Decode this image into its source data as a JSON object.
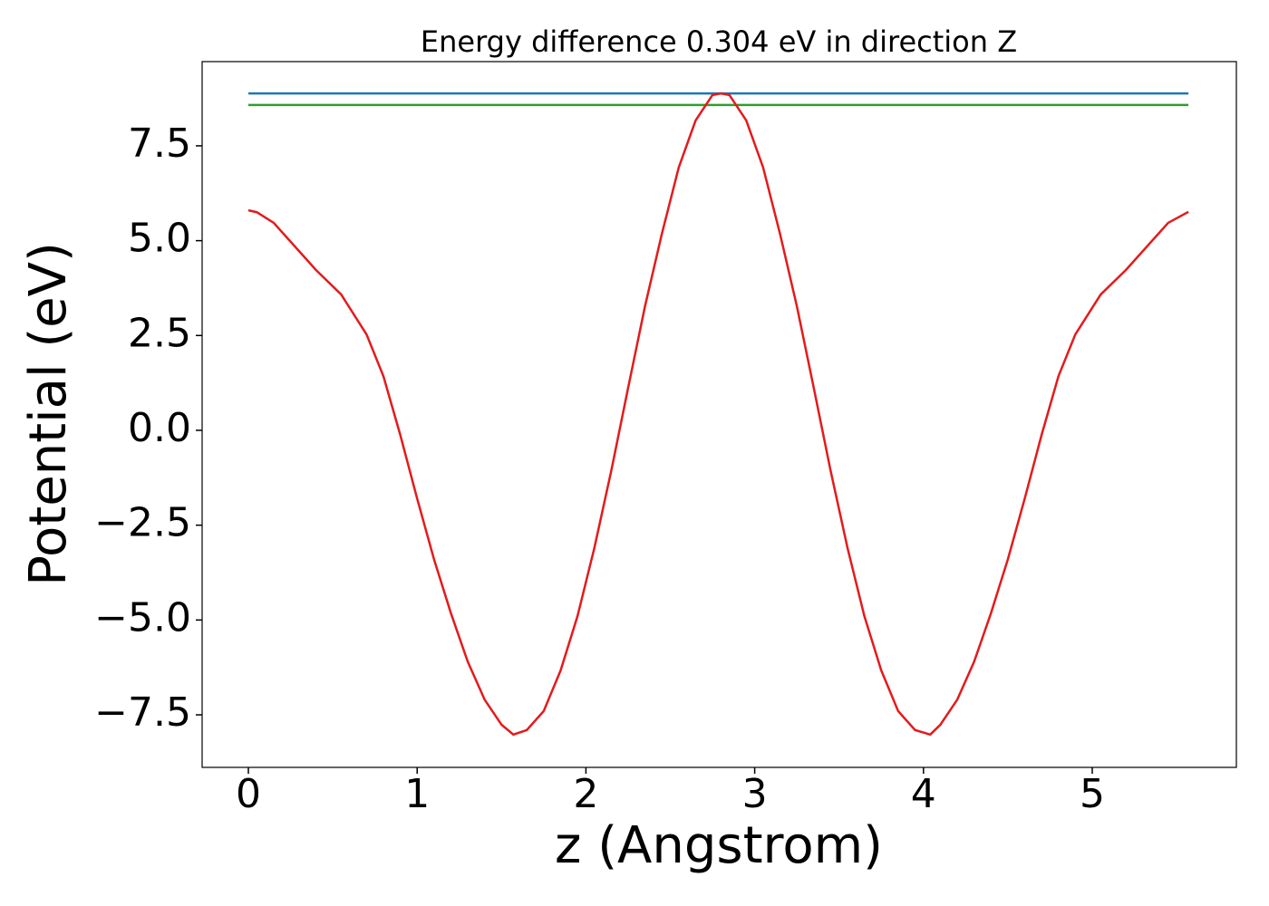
{
  "chart_data": {
    "type": "line",
    "title": "Energy difference 0.304 eV in direction Z",
    "xlabel": "z (Angstrom)",
    "ylabel": "Potential (eV)",
    "xlim": [
      -0.274,
      5.854
    ],
    "ylim": [
      -8.885,
      9.72
    ],
    "xticks": [
      0,
      1,
      2,
      3,
      4,
      5
    ],
    "yticks": [
      {
        "value": -7.5,
        "label": "−7.5"
      },
      {
        "value": -5,
        "label": "−5.0"
      },
      {
        "value": -2.5,
        "label": "−2.5"
      },
      {
        "value": 0,
        "label": "0.0"
      },
      2.5,
      {
        "value": 5,
        "label": "5.0"
      },
      7.5
    ],
    "series": [
      {
        "color": "#1f77b4",
        "x": [
          0,
          5.57
        ],
        "values": [
          8.88,
          8.88
        ]
      },
      {
        "color": "#2ca02c",
        "x": [
          0,
          5.57
        ],
        "values": [
          8.576,
          8.576
        ]
      },
      {
        "color": "#e41a1c",
        "x": [
          0,
          0.05,
          0.15,
          0.4,
          0.55,
          0.7,
          0.8,
          0.9,
          1.0,
          1.1,
          1.2,
          1.3,
          1.4,
          1.5,
          1.57,
          1.65,
          1.75,
          1.85,
          1.95,
          2.05,
          2.15,
          2.25,
          2.35,
          2.45,
          2.55,
          2.65,
          2.75,
          2.8,
          2.85,
          2.95,
          3.05,
          3.15,
          3.25,
          3.35,
          3.45,
          3.55,
          3.65,
          3.75,
          3.85,
          3.95,
          4.04,
          4.1,
          4.2,
          4.3,
          4.4,
          4.5,
          4.6,
          4.7,
          4.8,
          4.9,
          5.05,
          5.2,
          5.45,
          5.57
        ],
        "values": [
          5.8,
          5.75,
          5.47,
          4.23,
          3.58,
          2.53,
          1.43,
          -0.12,
          -1.8,
          -3.4,
          -4.82,
          -6.1,
          -7.1,
          -7.76,
          -8.02,
          -7.9,
          -7.4,
          -6.33,
          -4.9,
          -3.1,
          -1.07,
          1.12,
          3.27,
          5.18,
          6.93,
          8.17,
          8.84,
          8.88,
          8.84,
          8.17,
          6.93,
          5.18,
          3.27,
          1.12,
          -1.07,
          -3.1,
          -4.9,
          -6.33,
          -7.4,
          -7.9,
          -8.02,
          -7.76,
          -7.1,
          -6.1,
          -4.82,
          -3.4,
          -1.8,
          -0.12,
          1.43,
          2.53,
          3.58,
          4.23,
          5.47,
          5.76
        ]
      }
    ]
  }
}
